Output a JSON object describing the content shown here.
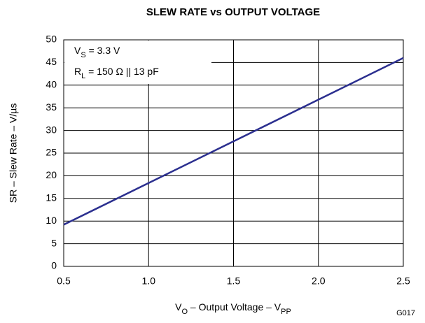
{
  "chart_data": {
    "type": "line",
    "title": "SLEW RATE vs OUTPUT VOLTAGE",
    "ylabel": "SR – Slew Rate – V/µs",
    "xlabel": [
      {
        "text": "V"
      },
      {
        "text": "O",
        "sub": true
      },
      {
        "text": " – Output Voltage – V"
      },
      {
        "text": "PP",
        "sub": true
      }
    ],
    "annotations": [
      [
        {
          "text": "V"
        },
        {
          "text": "S",
          "sub": true
        },
        {
          "text": " = 3.3 V"
        }
      ],
      [
        {
          "text": "R"
        },
        {
          "text": "L",
          "sub": true
        },
        {
          "text": " = 150 Ω || 13 pF"
        }
      ]
    ],
    "figure_id": "G017",
    "x": [
      0.5,
      2.5
    ],
    "series": [
      {
        "name": "SR",
        "color": "#2b2f8f",
        "values": [
          9.2,
          46
        ]
      }
    ],
    "xlim": [
      0.5,
      2.5
    ],
    "xticks": [
      {
        "value": 0.5,
        "label": "0.5"
      },
      {
        "value": 1,
        "label": "1.0"
      },
      {
        "value": 1.5,
        "label": "1.5"
      },
      {
        "value": 2,
        "label": "2.0"
      },
      {
        "value": 2.5,
        "label": "2.5"
      }
    ],
    "ylim": [
      0,
      50
    ],
    "yticks": [
      0,
      5,
      10,
      15,
      20,
      25,
      30,
      35,
      40,
      45,
      50
    ],
    "grid": true
  }
}
